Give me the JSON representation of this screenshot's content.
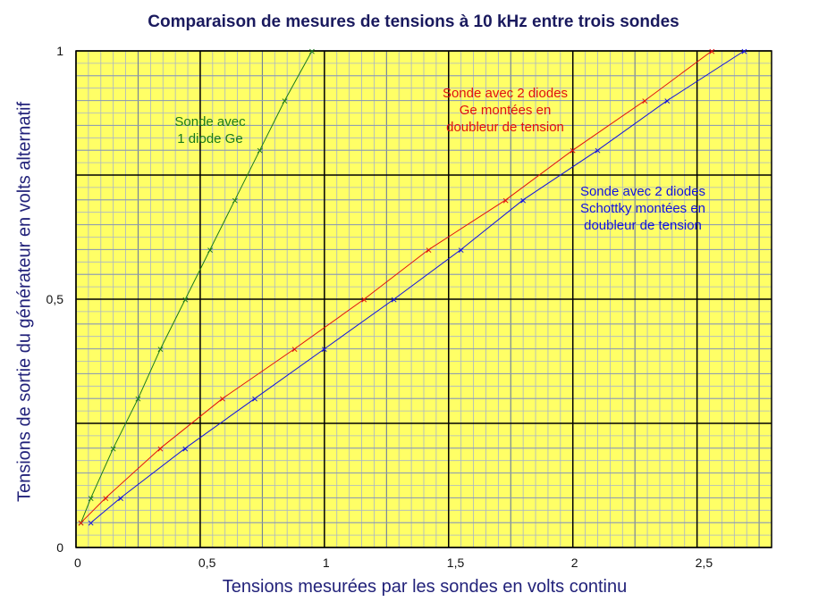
{
  "chart_data": {
    "type": "line",
    "title": "Comparaison de mesures de tensions à 10 kHz entre trois sondes",
    "xlabel": "Tensions mesurées par les sondes en volts continu",
    "ylabel": "Tensions de sortie du générateur en volts alternatif",
    "xlim": [
      0,
      2.8
    ],
    "ylim": [
      0,
      1
    ],
    "x_tick_labels": [
      "0",
      "0,5",
      "1",
      "1,5",
      "2",
      "2,5"
    ],
    "y_tick_labels": [
      "0",
      "0,5",
      "1"
    ],
    "grid": true,
    "background_color": "#ffff66",
    "series": [
      {
        "color": "#1a7a1a",
        "x": [
          0.02,
          0.06,
          0.15,
          0.25,
          0.34,
          0.44,
          0.54,
          0.64,
          0.74,
          0.84,
          0.95
        ],
        "y": [
          0.05,
          0.1,
          0.2,
          0.3,
          0.4,
          0.5,
          0.6,
          0.7,
          0.8,
          0.9,
          1.0
        ]
      },
      {
        "color": "#e01010",
        "x": [
          0.02,
          0.12,
          0.34,
          0.59,
          0.88,
          1.16,
          1.42,
          1.73,
          2.0,
          2.29,
          2.56
        ],
        "y": [
          0.05,
          0.1,
          0.2,
          0.3,
          0.4,
          0.5,
          0.6,
          0.7,
          0.8,
          0.9,
          1.0
        ]
      },
      {
        "color": "#1010e0",
        "x": [
          0.06,
          0.18,
          0.44,
          0.72,
          1.0,
          1.28,
          1.55,
          1.8,
          2.1,
          2.38,
          2.69
        ],
        "y": [
          0.05,
          0.1,
          0.2,
          0.3,
          0.4,
          0.5,
          0.6,
          0.7,
          0.8,
          0.9,
          1.0
        ]
      }
    ],
    "annotations": [
      {
        "color": "#1a7a1a",
        "lines": [
          "Sonde avec",
          "1 diode Ge"
        ]
      },
      {
        "color": "#e01010",
        "lines": [
          "Sonde avec 2 diodes",
          "Ge montées en",
          "doubleur de tension"
        ]
      },
      {
        "color": "#1010e0",
        "lines": [
          "Sonde avec 2 diodes",
          "Schottky montées en",
          "doubleur de tension"
        ]
      }
    ]
  }
}
